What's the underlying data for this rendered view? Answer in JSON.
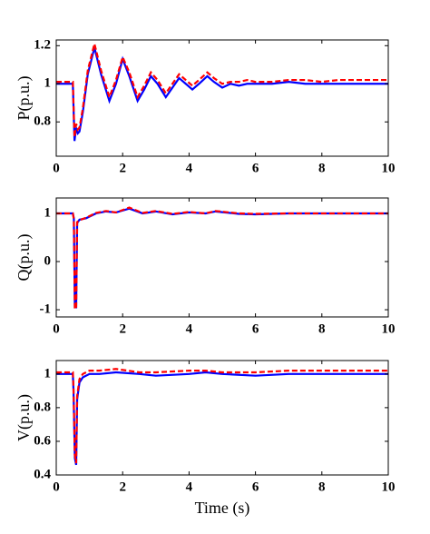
{
  "chart_data": [
    {
      "type": "line",
      "ylabel": "P(p.u.)",
      "x": [
        0,
        0.5,
        0.55,
        0.6,
        0.65,
        0.7,
        0.8,
        0.95,
        1.15,
        1.35,
        1.6,
        1.8,
        2.0,
        2.2,
        2.45,
        2.65,
        2.85,
        3.05,
        3.3,
        3.5,
        3.7,
        3.9,
        4.1,
        4.3,
        4.55,
        4.75,
        5.0,
        5.25,
        5.5,
        5.75,
        6.0,
        6.5,
        7.0,
        7.5,
        8.0,
        8.5,
        9.0,
        9.5,
        10
      ],
      "series": [
        {
          "color": "#0000ff",
          "linestyle": "solid",
          "values": [
            1,
            1,
            0.7,
            0.77,
            0.74,
            0.75,
            0.85,
            1.05,
            1.19,
            1.05,
            0.91,
            1.0,
            1.13,
            1.04,
            0.91,
            0.97,
            1.04,
            1.0,
            0.93,
            0.98,
            1.03,
            1.0,
            0.97,
            1.0,
            1.04,
            1.01,
            0.98,
            1.0,
            0.99,
            1.0,
            1.0,
            1.0,
            1.01,
            1.0,
            1.0,
            1.0,
            1.0,
            1.0,
            1.0
          ]
        },
        {
          "color": "#ff0000",
          "linestyle": "dashed",
          "values": [
            1.01,
            1.01,
            0.72,
            0.79,
            0.76,
            0.77,
            0.87,
            1.07,
            1.21,
            1.07,
            0.93,
            1.02,
            1.14,
            1.06,
            0.93,
            0.99,
            1.06,
            1.02,
            0.95,
            1.0,
            1.05,
            1.02,
            0.99,
            1.02,
            1.06,
            1.03,
            1.0,
            1.01,
            1.01,
            1.02,
            1.01,
            1.01,
            1.02,
            1.02,
            1.01,
            1.02,
            1.02,
            1.02,
            1.02
          ]
        }
      ],
      "xlim": [
        0,
        10
      ],
      "xticks": [
        0,
        2,
        4,
        6,
        8,
        10
      ],
      "ylim": [
        0.62,
        1.23
      ],
      "yticks": [
        0.8,
        1,
        1.2
      ]
    },
    {
      "type": "line",
      "ylabel": "Q(p.u.)",
      "x": [
        0,
        0.5,
        0.53,
        0.56,
        0.6,
        0.63,
        0.7,
        0.9,
        1.2,
        1.5,
        1.8,
        2.2,
        2.6,
        3.0,
        3.5,
        4.0,
        4.5,
        4.8,
        5.5,
        6.0,
        7,
        8,
        9,
        10
      ],
      "series": [
        {
          "color": "#0000ff",
          "linestyle": "solid",
          "values": [
            1,
            1,
            0.9,
            -0.95,
            -0.95,
            0.8,
            0.87,
            0.9,
            1.0,
            1.04,
            1.02,
            1.1,
            1.0,
            1.04,
            0.98,
            1.02,
            1.0,
            1.04,
            0.99,
            0.98,
            1.0,
            1.0,
            1.0,
            1.0
          ]
        },
        {
          "color": "#ff0000",
          "linestyle": "dashed",
          "values": [
            1,
            1,
            0.88,
            -0.98,
            -0.98,
            0.82,
            0.86,
            0.91,
            1.01,
            1.05,
            1.02,
            1.12,
            1.01,
            1.05,
            0.99,
            1.03,
            1.0,
            1.05,
            1.0,
            0.99,
            1.0,
            1.0,
            1.0,
            1.0
          ]
        }
      ],
      "xlim": [
        0,
        10
      ],
      "xticks": [
        0,
        2,
        4,
        6,
        8,
        10
      ],
      "ylim": [
        -1.15,
        1.32
      ],
      "yticks": [
        -1,
        0,
        1
      ]
    },
    {
      "type": "line",
      "ylabel": "V(p.u.)",
      "xlabel": "Time (s)",
      "x": [
        0,
        0.5,
        0.52,
        0.56,
        0.6,
        0.63,
        0.7,
        0.8,
        1.0,
        1.3,
        1.8,
        2.5,
        3,
        4,
        4.5,
        5,
        6,
        7,
        8,
        9,
        10
      ],
      "series": [
        {
          "color": "#0000ff",
          "linestyle": "solid",
          "values": [
            1,
            1,
            0.9,
            0.5,
            0.46,
            0.85,
            0.95,
            0.98,
            1.0,
            1.0,
            1.01,
            1.0,
            0.99,
            1.0,
            1.01,
            1.0,
            0.99,
            1.0,
            1.0,
            1.0,
            1.0
          ]
        },
        {
          "color": "#ff0000",
          "linestyle": "dashed",
          "values": [
            1.01,
            1.01,
            0.92,
            0.52,
            0.47,
            0.87,
            0.97,
            1.0,
            1.02,
            1.02,
            1.03,
            1.01,
            1.01,
            1.02,
            1.02,
            1.01,
            1.01,
            1.02,
            1.02,
            1.02,
            1.02
          ]
        }
      ],
      "xlim": [
        0,
        10
      ],
      "xticks": [
        0,
        2,
        4,
        6,
        8,
        10
      ],
      "ylim": [
        0.4,
        1.08
      ],
      "yticks": [
        0.4,
        0.6,
        0.8,
        1
      ]
    }
  ]
}
